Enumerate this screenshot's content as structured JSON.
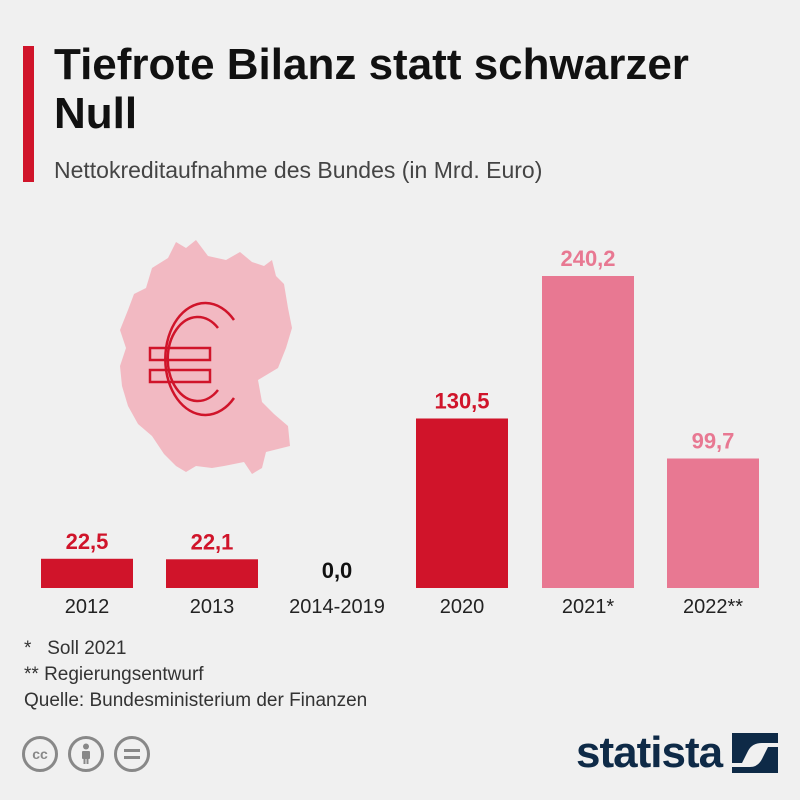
{
  "header": {
    "title": "Tiefrote Bilanz statt schwarzer Null",
    "subtitle": "Nettokreditaufnahme des Bundes (in Mrd. Euro)"
  },
  "colors": {
    "accent": "#d0142a",
    "dark_red": "#d0142a",
    "light_red": "#e87892",
    "map_fill": "#f2b9c2",
    "text_dark": "#111111",
    "brand": "#0e2a47"
  },
  "chart_data": {
    "type": "bar",
    "title": "Tiefrote Bilanz statt schwarzer Null",
    "subtitle": "Nettokreditaufnahme des Bundes (in Mrd. Euro)",
    "xlabel": "",
    "ylabel": "",
    "ylim": [
      0,
      240.2
    ],
    "categories": [
      "2012",
      "2013",
      "2014-2019",
      "2020",
      "2021*",
      "2022**"
    ],
    "values": [
      22.5,
      22.1,
      0.0,
      130.5,
      240.2,
      99.7
    ],
    "value_labels": [
      "22,5",
      "22,1",
      "0,0",
      "130,5",
      "240,2",
      "99,7"
    ],
    "bar_styles": [
      "dark",
      "dark",
      "dark",
      "dark",
      "light",
      "light"
    ],
    "grid": false,
    "legend": "none"
  },
  "decoration": {
    "map_icon": "germany-map-icon",
    "euro_icon": "euro-icon"
  },
  "footnotes": {
    "note1": "*   Soll 2021",
    "note2": "** Regierungsentwurf",
    "source": "Quelle: Bundesministerium der Finanzen"
  },
  "license": {
    "cc_label": "cc",
    "by_icon": "person-icon",
    "nd_icon": "equals-icon"
  },
  "brand": {
    "name": "statista",
    "logo_icon": "statista-logo-icon"
  }
}
